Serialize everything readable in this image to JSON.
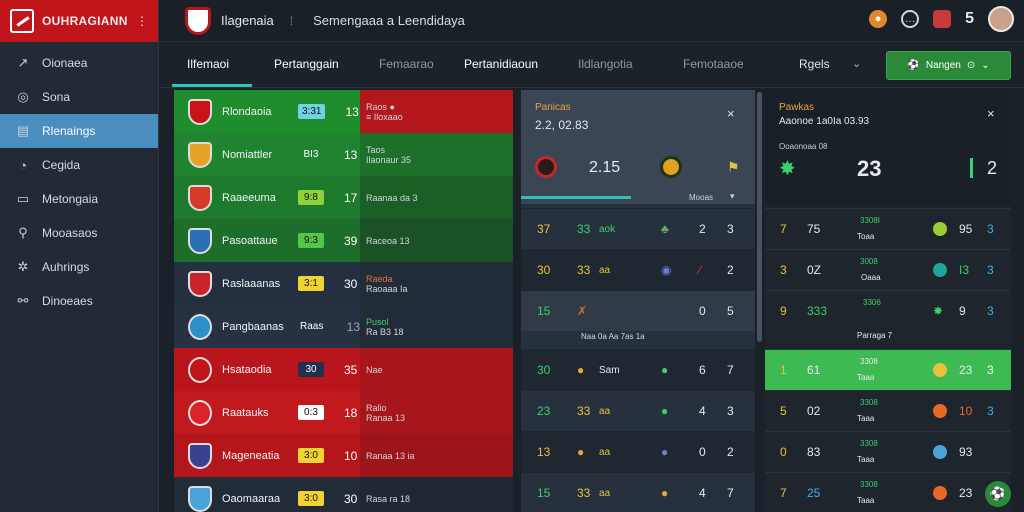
{
  "brand": {
    "name": "OUHRAGIANN",
    "menu": "⋮"
  },
  "header": {
    "title": "Ilagenaia",
    "separator": "⁞",
    "subtitle": "Semengaaa a Leendidaya",
    "count": "5"
  },
  "sidebar": {
    "items": [
      {
        "label": "Oionaea",
        "icon": "arrow-icon"
      },
      {
        "label": "Sona",
        "icon": "compass-icon"
      },
      {
        "label": "Rlenaings",
        "icon": "calendar-icon",
        "active": true
      },
      {
        "label": "Cegida",
        "icon": "chat-icon"
      },
      {
        "label": "Metongaia",
        "icon": "monitor-icon"
      },
      {
        "label": "Mooasaos",
        "icon": "search-icon"
      },
      {
        "label": "Auhrings",
        "icon": "gear-icon"
      },
      {
        "label": "Dinoeaes",
        "icon": "stats-icon"
      }
    ]
  },
  "tabs": [
    {
      "label": "Ilfemaoi"
    },
    {
      "label": "Pertanggain"
    },
    {
      "label": "Femaarao"
    },
    {
      "label": "Pertanidiaoun"
    },
    {
      "label": "Ildlangotia"
    },
    {
      "label": "Femotaaoe"
    }
  ],
  "filter": {
    "label": "Rgels",
    "chevron": "⌄"
  },
  "join_button": {
    "label": "Nangen",
    "icon": "⊙",
    "chev": "⌄"
  },
  "left_rows": [
    {
      "team": "Rlondaoia",
      "pill": "3:31",
      "score": "13",
      "l1": "Raos ●",
      "l2": "≡ Iloxaao"
    },
    {
      "team": "Nomiattler",
      "pill": "BI3",
      "score": "13",
      "l1": "Taos",
      "l2": "Ilaonaur 35"
    },
    {
      "team": "Raaeeuma",
      "pill": "9:8",
      "score": "17",
      "l1": "Raanaa da 3",
      "l2": ""
    },
    {
      "team": "Pasoattaue",
      "pill": "9:3",
      "score": "39",
      "l1": "Raceoa 13",
      "l2": ""
    },
    {
      "team": "Raslaaanas",
      "pill": "3:1",
      "score": "30",
      "l1": "Raeda",
      "l2": "Raoaaa Ia"
    },
    {
      "team": "Pangbaanas",
      "pill": "Raas",
      "score": "13",
      "l1": "Pusol",
      "l2": "Ra B3 18"
    },
    {
      "team": "Hsataodia",
      "pill": "30",
      "score": "35",
      "l1": "Nae",
      "l2": ""
    },
    {
      "team": "Raatauks",
      "pill": "0:3",
      "score": "18",
      "l1": "Ralio",
      "l2": "Ranaa 13"
    },
    {
      "team": "Mageneatia",
      "pill": "3:0",
      "score": "10",
      "l1": "Ranaa 13 ia",
      "l2": ""
    },
    {
      "team": "Oaomaaraa",
      "pill": "3:0",
      "score": "30",
      "l1": "Rasa ra 18",
      "l2": ""
    }
  ],
  "mid": {
    "label": "Panicas",
    "date": "2.2, 02.83",
    "close": "×",
    "home_score": "2.15",
    "footer": "Mooas",
    "rows": [
      {
        "a": "37",
        "b": "33",
        "t": "aok",
        "x": "2",
        "y": "3"
      },
      {
        "a": "30",
        "b": "33",
        "t": "aa",
        "x": "2",
        "y": "2"
      },
      {
        "a": "15",
        "b": "",
        "t": "",
        "x": "0",
        "y": "5",
        "sub": "Naa  0a  Aa  7as  1a"
      },
      {
        "a": "30",
        "b": "",
        "t": "Sam",
        "x": "6",
        "y": "7"
      },
      {
        "a": "23",
        "b": "33",
        "t": "aa",
        "x": "4",
        "y": "3"
      },
      {
        "a": "13",
        "b": "",
        "t": "aa",
        "x": "0",
        "y": "2"
      },
      {
        "a": "15",
        "b": "33",
        "t": "aa",
        "x": "4",
        "y": "7"
      }
    ]
  },
  "right": {
    "label": "Pawkas",
    "date": "Aaonoe 1a0Ia 03.93",
    "sub": "Ooaonoaa 08",
    "close": "×",
    "big_score": "23",
    "small": "2",
    "rows": [
      {
        "a": "7",
        "b": "75",
        "top": "3308I",
        "bot": "Toaa",
        "p": "95",
        "q": "3"
      },
      {
        "a": "3",
        "b": "0Z",
        "top": "3008",
        "bot": "Oaaa",
        "p": "I3",
        "q": "3"
      },
      {
        "a": "9",
        "b": "333",
        "top": "3306",
        "bot": "Parraga 7",
        "p": "9",
        "q": "3"
      },
      {
        "a": "1",
        "b": "61",
        "top": "3308",
        "bot": "Taaa",
        "p": "23",
        "q": "3"
      },
      {
        "a": "5",
        "b": "02",
        "top": "3308",
        "bot": "Taaa",
        "p": "10",
        "q": "3"
      },
      {
        "a": "0",
        "b": "83",
        "top": "3308",
        "bot": "Taaa",
        "p": "93",
        "q": ""
      },
      {
        "a": "7",
        "b": "25",
        "top": "3308",
        "bot": "Taaa",
        "p": "23",
        "q": ""
      }
    ]
  }
}
